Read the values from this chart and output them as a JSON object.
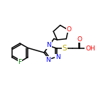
{
  "bg_color": "#ffffff",
  "bond_color": "#000000",
  "atom_colors": {
    "F": "#008000",
    "O": "#ff0000",
    "N": "#0000ff",
    "S": "#bbaa00",
    "C": "#000000",
    "H": "#000000"
  },
  "font_size": 6.5,
  "line_width": 1.1,
  "figsize": [
    1.52,
    1.52
  ],
  "dpi": 100
}
